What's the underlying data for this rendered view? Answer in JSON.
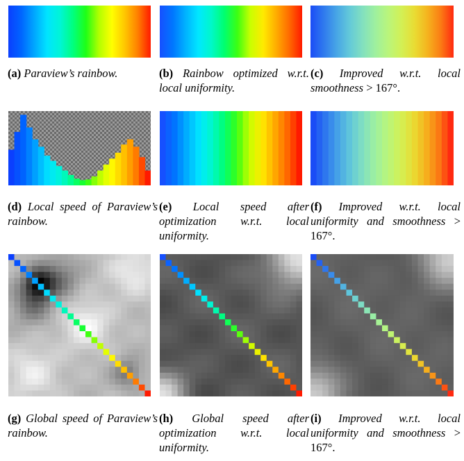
{
  "colors": {
    "rainbow_a": [
      "#0b3ffe",
      "#0065ff",
      "#00a6ff",
      "#00e4ff",
      "#00f5d6",
      "#00ff7e",
      "#1fff16",
      "#b2ff00",
      "#ffff00",
      "#ffc600",
      "#ff7f00",
      "#ff1a00"
    ],
    "rainbow_b": [
      "#1650ff",
      "#0076ff",
      "#00b2ff",
      "#00e8ff",
      "#00f8c8",
      "#00ff6e",
      "#3cff12",
      "#c9ff00",
      "#ffea00",
      "#ffac00",
      "#ff6a00",
      "#ff1a00"
    ],
    "rainbow_c": [
      "#1a4cf6",
      "#2f79ee",
      "#47a5e6",
      "#63c9d9",
      "#82e0bf",
      "#9ff09e",
      "#baf57a",
      "#d3f055",
      "#e9dc33",
      "#f5b31e",
      "#fb7d14",
      "#ff2a10"
    ]
  },
  "local_speed_a_levels": [
    0.48,
    0.72,
    0.95,
    0.78,
    0.62,
    0.52,
    0.4,
    0.33,
    0.26,
    0.2,
    0.14,
    0.09,
    0.07,
    0.08,
    0.12,
    0.2,
    0.28,
    0.36,
    0.44,
    0.55,
    0.62,
    0.52,
    0.38,
    0.2
  ],
  "captions": {
    "a": {
      "label": "(a)",
      "text": "Paraview’s rainbow."
    },
    "b": {
      "label": "(b)",
      "text": "Rainbow optimized w.r.t. local uniformity."
    },
    "c": {
      "label": "(c)",
      "text_main": "Improved w.r.t. local smoothness",
      "math": " > 167°."
    },
    "d": {
      "label": "(d)",
      "text": "Local speed of Paraview’s rainbow."
    },
    "e": {
      "label": "(e)",
      "text": "Local speed after optimization w.r.t. local uniformity."
    },
    "f": {
      "label": "(f)",
      "text_main": "Improved w.r.t. local uniformity and smoothness",
      "math": " > 167°."
    },
    "g": {
      "label": "(g)",
      "text": "Global speed of Paraview’s rainbow."
    },
    "h": {
      "label": "(h)",
      "text": "Global speed after optimization w.r.t. local uniformity."
    },
    "i": {
      "label": "(i)",
      "text_main": "Improved w.r.t. local uniformity and smoothness",
      "math": " > 167°."
    }
  }
}
